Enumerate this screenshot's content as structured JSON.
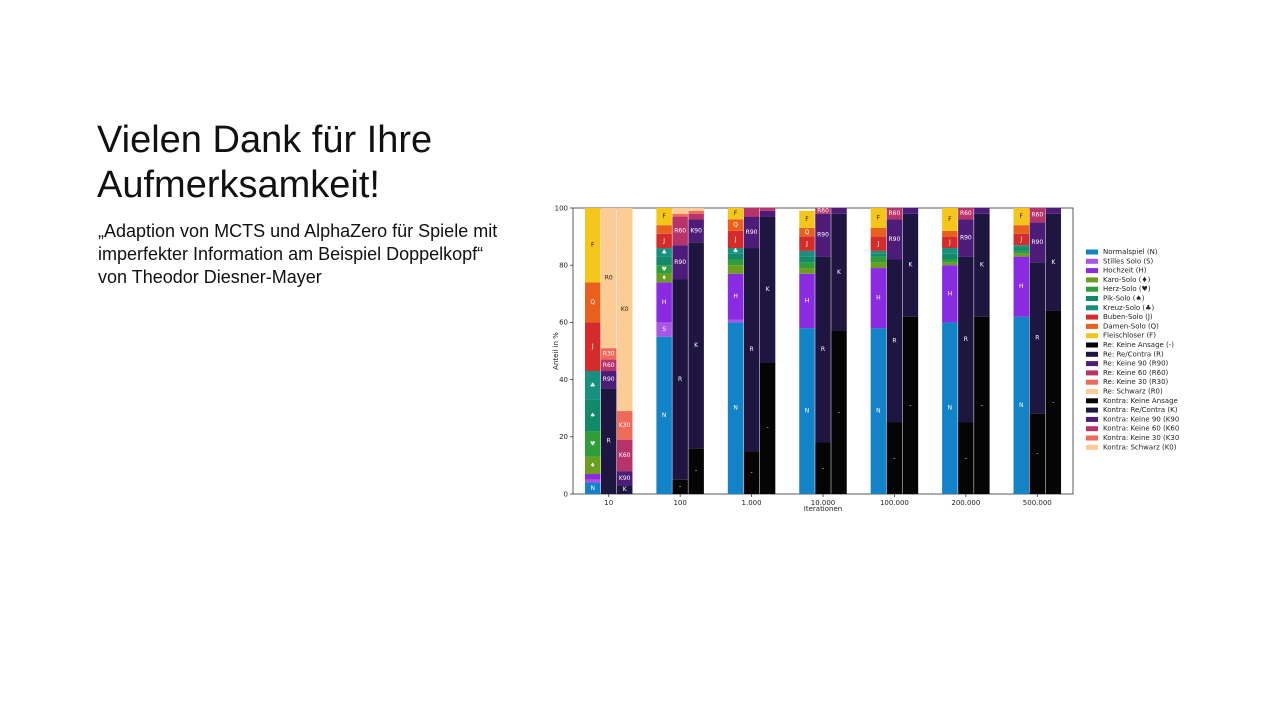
{
  "slide": {
    "title_line1": "Vielen Dank für Ihre",
    "title_line2": "Aufmerksamkeit!",
    "subtitle": "„Adaption von MCTS und AlphaZero für Spiele mit imperfekter Information am Beispiel Doppelkopf“ von Theodor Diesner-Mayer"
  },
  "chart_data": {
    "type": "bar",
    "stacked": true,
    "xlabel": "Iterationen",
    "ylabel": "Anteil in %",
    "ylim": [
      0,
      100
    ],
    "yticks": [
      0,
      20,
      40,
      60,
      80,
      100
    ],
    "categories": [
      "10",
      "100",
      "1.000",
      "10.000",
      "100.000",
      "200.000",
      "500.000"
    ],
    "groups": [
      {
        "name": "game_type",
        "segments": [
          {
            "key": "N",
            "label": "Normalspiel (N)",
            "color": "#1283c7"
          },
          {
            "key": "S",
            "label": "Stilles Solo (S)",
            "color": "#a855e8"
          },
          {
            "key": "H",
            "label": "Hochzeit (H)",
            "color": "#8a2be2"
          },
          {
            "key": "♦",
            "label": "Karo-Solo (♦)",
            "color": "#6b9e1f"
          },
          {
            "key": "♥",
            "label": "Herz-Solo (♥)",
            "color": "#2e9e3a"
          },
          {
            "key": "♠",
            "label": "Pik-Solo (♠)",
            "color": "#118a6a"
          },
          {
            "key": "♣",
            "label": "Kreuz-Solo (♣)",
            "color": "#17907e"
          },
          {
            "key": "J",
            "label": "Buben-Solo (J)",
            "color": "#d42b2b"
          },
          {
            "key": "Q",
            "label": "Damen-Solo (Q)",
            "color": "#e8601c"
          },
          {
            "key": "F",
            "label": "Fleischloser (F)",
            "color": "#f6c51a"
          }
        ],
        "values": [
          [
            4,
            1,
            2,
            6,
            9,
            11,
            10,
            17,
            14,
            26
          ],
          [
            55,
            5,
            14,
            3,
            3,
            3,
            3,
            5,
            3,
            6
          ],
          [
            60,
            1,
            16,
            3,
            2,
            2,
            2,
            6,
            4,
            4
          ],
          [
            58,
            0,
            19,
            2,
            2,
            2,
            2,
            5,
            3,
            6
          ],
          [
            58,
            0,
            21,
            2,
            2,
            1,
            1,
            5,
            3,
            7
          ],
          [
            60,
            0,
            20,
            1,
            1,
            2,
            2,
            4,
            2,
            8
          ],
          [
            62,
            0,
            21,
            1,
            1,
            1,
            1,
            4,
            3,
            6
          ]
        ]
      },
      {
        "name": "re_announcement",
        "segments": [
          {
            "key": "-",
            "label": "Re: Keine Ansage (-)",
            "color": "#050505"
          },
          {
            "key": "R",
            "label": "Re: Re/Contra (R)",
            "color": "#1e1640"
          },
          {
            "key": "R90",
            "label": "Re: Keine 90 (R90)",
            "color": "#4d1c78"
          },
          {
            "key": "R60",
            "label": "Re: Keine 60 (R60)",
            "color": "#b8336a"
          },
          {
            "key": "R30",
            "label": "Re: Keine 30 (R30)",
            "color": "#f06a5a"
          },
          {
            "key": "R0",
            "label": "Re: Schwarz (R0)",
            "color": "#fdcb94"
          }
        ],
        "values": [
          [
            0,
            37,
            6,
            4,
            4,
            49
          ],
          [
            5,
            70,
            12,
            10,
            1,
            2
          ],
          [
            15,
            71,
            11,
            3,
            0,
            0
          ],
          [
            18,
            65,
            15,
            2,
            0,
            0
          ],
          [
            25,
            57,
            14,
            4,
            0,
            0
          ],
          [
            25,
            58,
            13,
            4,
            0,
            0
          ],
          [
            28,
            53,
            14,
            5,
            0,
            0
          ]
        ]
      },
      {
        "name": "kontra_announcement",
        "segments": [
          {
            "key": "-",
            "label": "Kontra: Keine Ansage (-)",
            "color": "#050505"
          },
          {
            "key": "K",
            "label": "Kontra: Re/Contra (K)",
            "color": "#1e1640"
          },
          {
            "key": "K90",
            "label": "Kontra: Keine 90 (K90)",
            "color": "#4d1c78"
          },
          {
            "key": "K60",
            "label": "Kontra: Keine 60 (K60)",
            "color": "#b8336a"
          },
          {
            "key": "K30",
            "label": "Kontra: Keine 30 (K30)",
            "color": "#f06a5a"
          },
          {
            "key": "K0",
            "label": "Kontra: Schwarz (K0)",
            "color": "#fdcb94"
          }
        ],
        "values": [
          [
            0,
            3,
            5,
            11,
            10,
            71
          ],
          [
            16,
            72,
            8,
            2,
            1,
            1
          ],
          [
            46,
            51,
            2,
            1,
            0,
            0
          ],
          [
            57,
            41,
            2,
            0,
            0,
            0
          ],
          [
            62,
            36,
            2,
            0,
            0,
            0
          ],
          [
            62,
            36,
            2,
            0,
            0,
            0
          ],
          [
            64,
            34,
            2,
            0,
            0,
            0
          ]
        ]
      }
    ],
    "labels_shown": [
      [
        [
          "N",
          "♦",
          "♥",
          "♠",
          "♣",
          "J",
          "Q",
          "F"
        ],
        [
          "R",
          "R90",
          "R60",
          "R30",
          "R0"
        ],
        [
          "K",
          "K90",
          "K60",
          "K30",
          "K0"
        ]
      ],
      [
        [
          "N",
          "S",
          "H",
          "♦",
          "♥",
          "♣",
          "J",
          "F"
        ],
        [
          "-",
          "R",
          "R90",
          "R60"
        ],
        [
          "-",
          "K",
          "K90"
        ]
      ],
      [
        [
          "N",
          "H",
          "J",
          "Q",
          "♣",
          "F"
        ],
        [
          "-",
          "R",
          "R90"
        ],
        [
          "-",
          "K"
        ]
      ],
      [
        [
          "N",
          "H",
          "J",
          "Q",
          "F"
        ],
        [
          "-",
          "R",
          "R90",
          "R60"
        ],
        [
          "-",
          "K"
        ]
      ],
      [
        [
          "N",
          "H",
          "J",
          "F"
        ],
        [
          "-",
          "R",
          "R90",
          "R60"
        ],
        [
          "-",
          "K"
        ]
      ],
      [
        [
          "N",
          "H",
          "J",
          "F"
        ],
        [
          "-",
          "R",
          "R90",
          "R60"
        ],
        [
          "-",
          "K"
        ]
      ],
      [
        [
          "N",
          "H",
          "J",
          "F"
        ],
        [
          "-",
          "R",
          "R90",
          "R60"
        ],
        [
          "-",
          "K"
        ]
      ]
    ]
  }
}
